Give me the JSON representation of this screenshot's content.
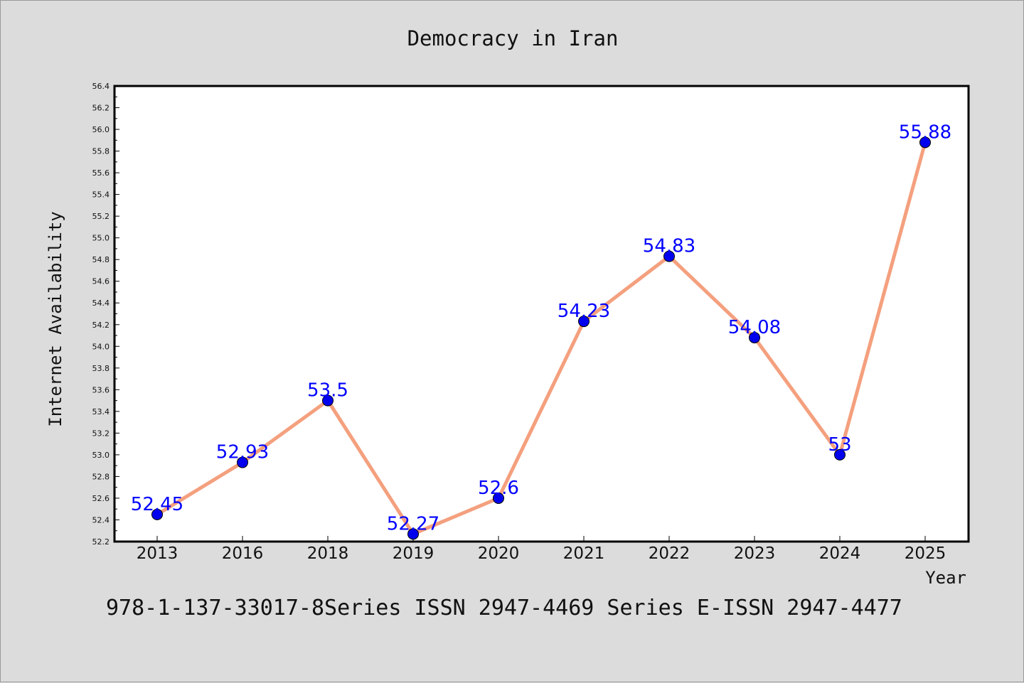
{
  "chart_data": {
    "type": "line",
    "title": "Democracy in Iran",
    "xlabel": "Year",
    "ylabel": "Internet Availability",
    "categories": [
      "2013",
      "2016",
      "2018",
      "2019",
      "2020",
      "2021",
      "2022",
      "2023",
      "2024",
      "2025"
    ],
    "series": [
      {
        "values": [
          52.45,
          52.93,
          53.5,
          52.27,
          52.6,
          54.23,
          54.83,
          54.08,
          53,
          55.88
        ],
        "data_labels": [
          "52.45",
          "52.93",
          "53.5",
          "52.27",
          "52.6",
          "54.23",
          "54.83",
          "54.08",
          "53",
          "55.88"
        ],
        "line_color": "#f4a07e",
        "marker_color": "#0000ee"
      }
    ],
    "ylim": [
      52.2,
      56.4
    ],
    "yticks": [
      "52.2",
      "52.4",
      "52.6",
      "52.8",
      "53.0",
      "53.2",
      "53.4",
      "53.6",
      "53.8",
      "54.0",
      "54.2",
      "54.4",
      "54.6",
      "54.8",
      "55.0",
      "55.2",
      "55.4",
      "55.6",
      "55.8",
      "56.0",
      "56.2",
      "56.4"
    ],
    "grid": false,
    "legend": "none"
  },
  "footer": "978-1-137-33017-8Series ISSN 2947-4469 Series E-ISSN 2947-4477",
  "colors": {
    "background": "#dcdcdc",
    "plot_background": "#ffffff",
    "label_color": "#0000ff"
  }
}
